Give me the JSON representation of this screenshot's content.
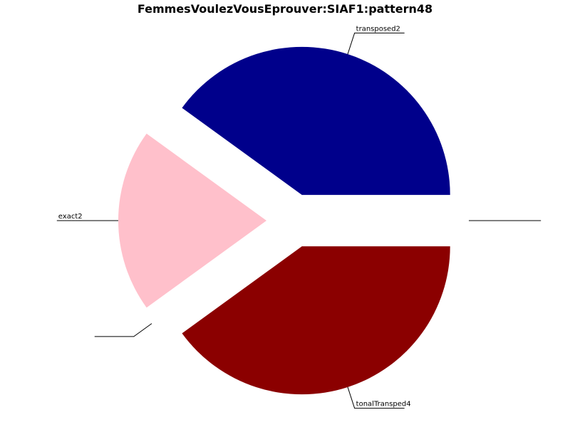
{
  "chart_data": {
    "type": "pie",
    "title": "FemmesVoulezVousEprouver:SIAF1:pattern48",
    "slices": [
      {
        "label": "",
        "value": 0,
        "color": "#ffffff"
      },
      {
        "label": "transposed2",
        "value": 2,
        "color": "#00008b"
      },
      {
        "label": "exact2",
        "value": 1,
        "color": "#ffc0cb"
      },
      {
        "label": "",
        "value": 0,
        "color": "#ffffff"
      },
      {
        "label": "tonalTransped4",
        "value": 2,
        "color": "#8b0000"
      }
    ]
  }
}
